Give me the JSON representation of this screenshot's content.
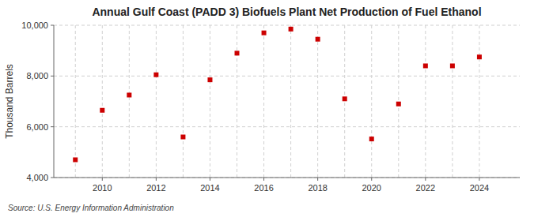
{
  "chart_data": {
    "type": "scatter",
    "title": "Annual Gulf Coast (PADD 3) Biofuels Plant Net Production of Fuel Ethanol",
    "ylabel": "Thousand Barrels",
    "source": "Source: U.S. Energy Information Administration",
    "x": [
      2009,
      2010,
      2011,
      2012,
      2013,
      2014,
      2015,
      2016,
      2017,
      2018,
      2019,
      2020,
      2021,
      2022,
      2023,
      2024
    ],
    "values": [
      4700,
      6650,
      7250,
      8050,
      5600,
      7850,
      8900,
      9700,
      9850,
      9450,
      7100,
      5520,
      6900,
      8400,
      8400,
      8750
    ],
    "color": "#cc0000",
    "marker": "square",
    "grid": true,
    "xlim": [
      2008.2,
      2025.5
    ],
    "xticks": [
      2010,
      2012,
      2014,
      2016,
      2018,
      2020,
      2022,
      2024
    ],
    "ylim": [
      4000,
      10000
    ],
    "yticks": [
      {
        "value": 4000,
        "label": "4,000"
      },
      {
        "value": 6000,
        "label": "6,000"
      },
      {
        "value": 8000,
        "label": "8,000"
      },
      {
        "value": 10000,
        "label": "10,000"
      }
    ]
  }
}
